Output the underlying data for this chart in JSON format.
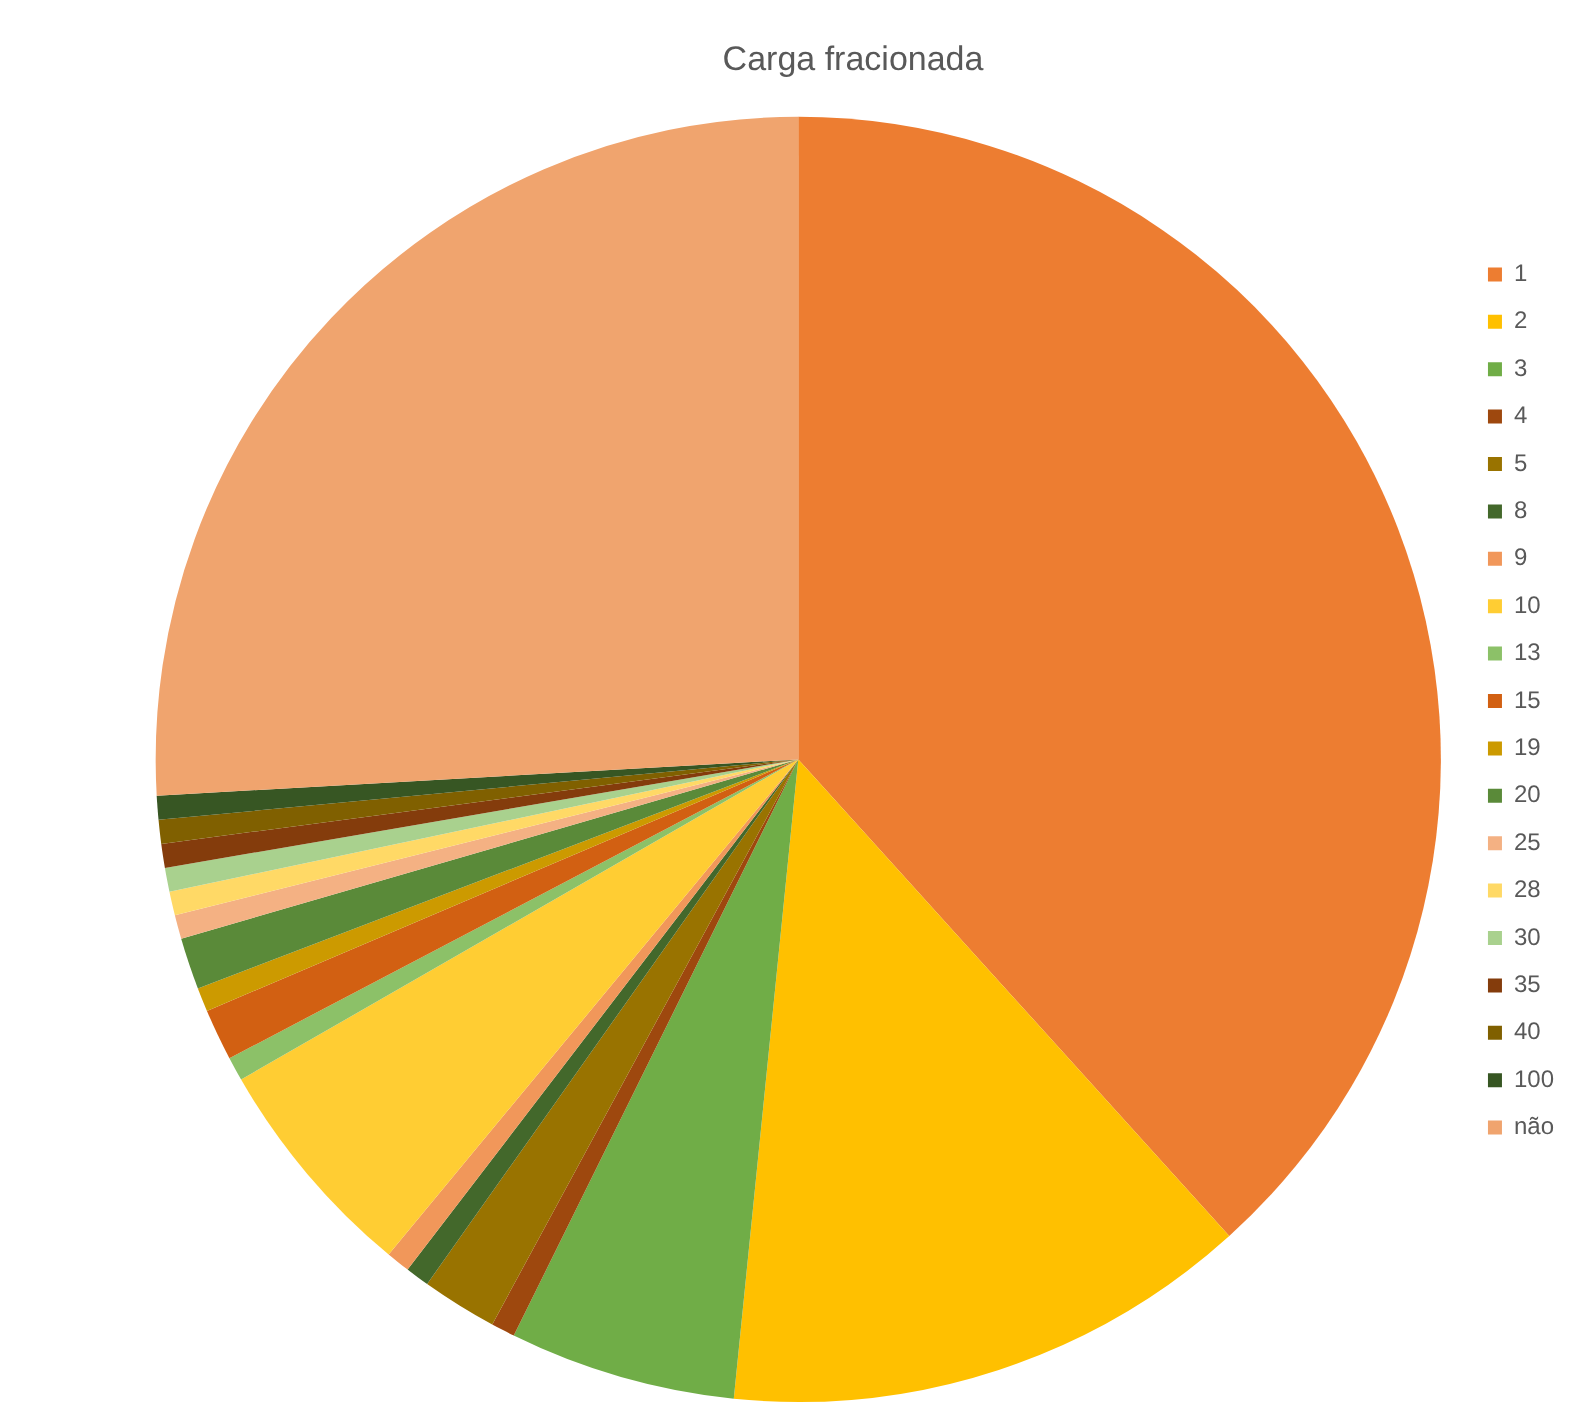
{
  "chart_data": {
    "type": "pie",
    "title": "Carga fracionada",
    "categories": [
      "1",
      "2",
      "3",
      "4",
      "5",
      "8",
      "9",
      "10",
      "13",
      "15",
      "19",
      "20",
      "25",
      "28",
      "30",
      "35",
      "40",
      "100",
      "não"
    ],
    "values": [
      38.3,
      13.3,
      5.7,
      0.6,
      1.9,
      0.6,
      0.6,
      5.7,
      0.6,
      1.3,
      0.6,
      1.3,
      0.6,
      0.6,
      0.6,
      0.6,
      0.6,
      0.6,
      25.9
    ],
    "colors": [
      "#ed7d31",
      "#ffc000",
      "#70ad47",
      "#9e480e",
      "#997300",
      "#43682b",
      "#f1975a",
      "#ffcd33",
      "#8cc168",
      "#d26012",
      "#cc9a00",
      "#5a8a39",
      "#f4b183",
      "#ffd966",
      "#a9d18e",
      "#843c0c",
      "#806000",
      "#375623",
      "#f0a46e"
    ],
    "legend": "right"
  }
}
